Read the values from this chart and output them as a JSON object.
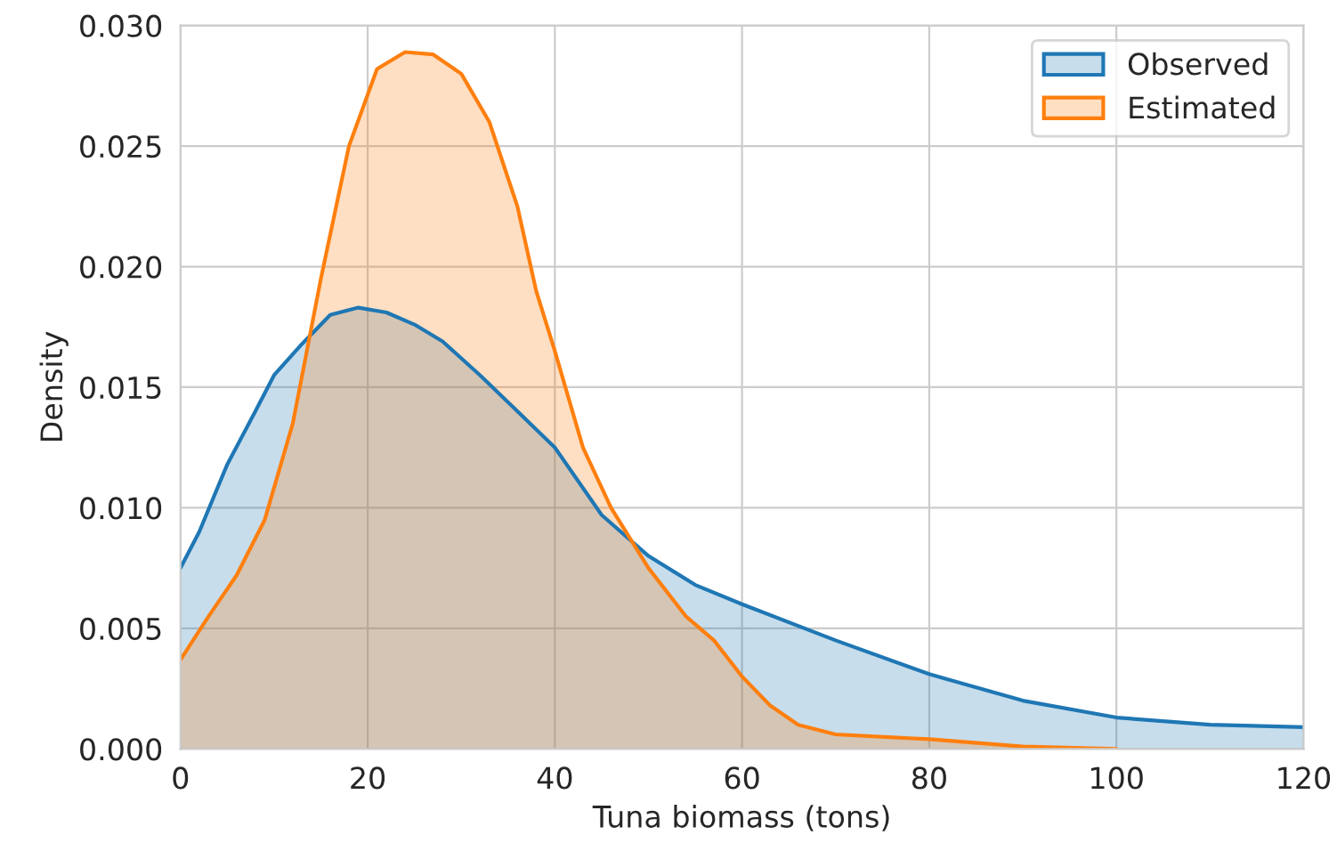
{
  "chart_data": {
    "type": "area",
    "xlabel": "Tuna biomass (tons)",
    "ylabel": "Density",
    "xlim": [
      0,
      120
    ],
    "ylim": [
      0,
      0.03
    ],
    "xticks": [
      0,
      20,
      40,
      60,
      80,
      100,
      120
    ],
    "yticks": [
      {
        "value": 0,
        "label": "0.000"
      },
      {
        "value": 0.005,
        "label": "0.005"
      },
      {
        "value": 0.01,
        "label": "0.010"
      },
      {
        "value": 0.015,
        "label": "0.015"
      },
      {
        "value": 0.02,
        "label": "0.020"
      },
      {
        "value": 0.025,
        "label": "0.025"
      },
      {
        "value": 0.03,
        "label": "0.030"
      }
    ],
    "grid": true,
    "legend": "top right",
    "series": [
      {
        "name": "Observed",
        "color": "#1f77b4",
        "x": [
          0,
          2,
          5,
          8,
          10,
          13,
          16,
          19,
          22,
          25,
          28,
          32,
          36,
          40,
          45,
          50,
          55,
          60,
          70,
          80,
          90,
          100,
          110,
          120
        ],
        "values": [
          0.0075,
          0.009,
          0.0118,
          0.014,
          0.0155,
          0.0168,
          0.018,
          0.0183,
          0.0181,
          0.0176,
          0.0169,
          0.0155,
          0.014,
          0.0125,
          0.0097,
          0.008,
          0.0068,
          0.006,
          0.0045,
          0.0031,
          0.002,
          0.0013,
          0.001,
          0.0009
        ]
      },
      {
        "name": "Estimated",
        "color": "#ff7f0e",
        "x": [
          0,
          3,
          6,
          9,
          12,
          15,
          18,
          21,
          24,
          27,
          30,
          33,
          36,
          38,
          40,
          43,
          46,
          50,
          54,
          57,
          60,
          63,
          66,
          70,
          80,
          90,
          100
        ],
        "values": [
          0.0037,
          0.0055,
          0.0072,
          0.0095,
          0.0135,
          0.0195,
          0.025,
          0.0282,
          0.0289,
          0.0288,
          0.028,
          0.026,
          0.0225,
          0.019,
          0.0165,
          0.0125,
          0.01,
          0.0075,
          0.0055,
          0.0045,
          0.003,
          0.0018,
          0.001,
          0.0006,
          0.0004,
          0.0001,
          0.0
        ]
      }
    ]
  }
}
